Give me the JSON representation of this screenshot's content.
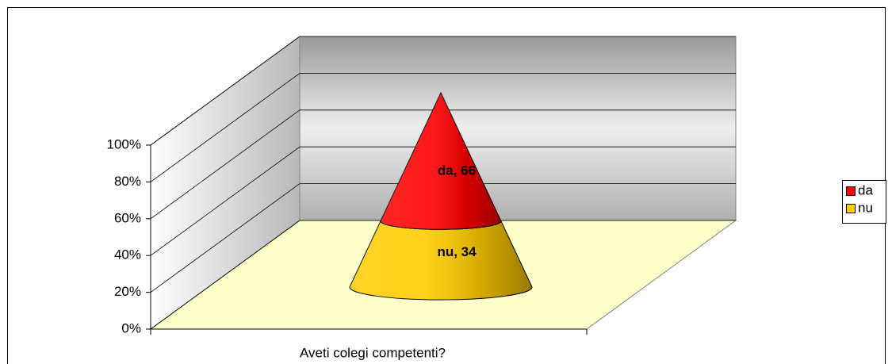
{
  "chart_data": {
    "type": "cone",
    "stacked": true,
    "categories": [
      "Aveti colegi competenti?"
    ],
    "series": [
      {
        "name": "da",
        "color": "#ff0000",
        "values": [
          66
        ],
        "value_labels": [
          "da, 66"
        ]
      },
      {
        "name": "nu",
        "color": "#ffcc00",
        "values": [
          34
        ],
        "value_labels": [
          "nu, 34"
        ]
      }
    ],
    "ylim": [
      0,
      100
    ],
    "yticks": [
      {
        "value": 0,
        "label": "0%"
      },
      {
        "value": 20,
        "label": "20%"
      },
      {
        "value": 40,
        "label": "40%"
      },
      {
        "value": 60,
        "label": "60%"
      },
      {
        "value": 80,
        "label": "80%"
      },
      {
        "value": 100,
        "label": "100%"
      }
    ],
    "grid": true,
    "legend": "right"
  }
}
